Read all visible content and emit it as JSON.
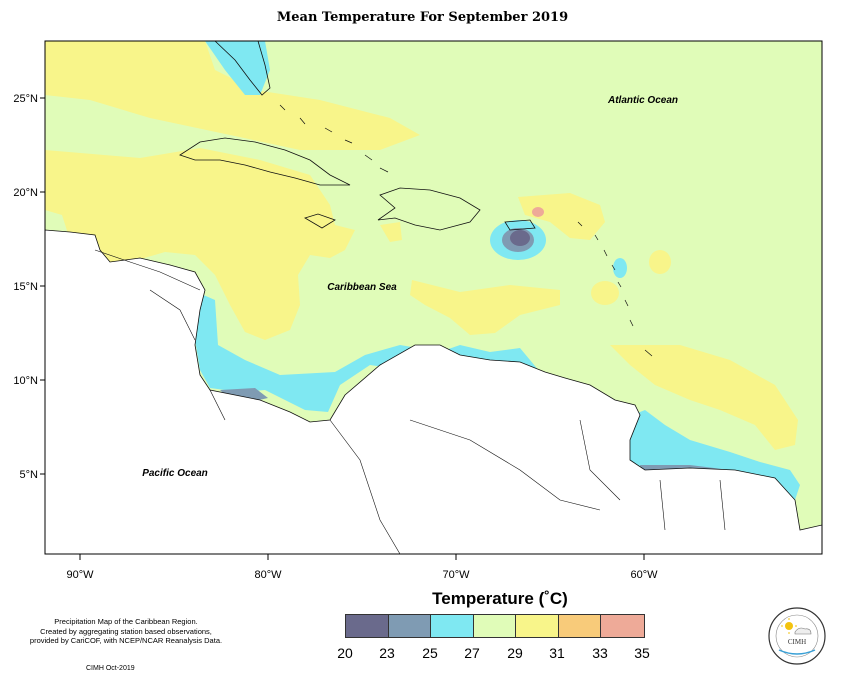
{
  "title": "Mean Temperature For September 2019",
  "lat_ticks": [
    "25°N",
    "20°N",
    "15°N",
    "10°N",
    "5°N"
  ],
  "lon_ticks": [
    "90°W",
    "80°W",
    "70°W",
    "60°W"
  ],
  "labels": {
    "atlantic": "Atlantic Ocean",
    "caribbean": "Caribbean Sea",
    "pacific": "Pacific Ocean"
  },
  "legend": {
    "title": "Temperature (˚C)",
    "ticks": [
      "20",
      "23",
      "25",
      "27",
      "29",
      "31",
      "33",
      "35"
    ],
    "colors": [
      "#6a6a8c",
      "#7f9bb3",
      "#7fe8f2",
      "#e0fcb8",
      "#f8f58a",
      "#f8cb7a",
      "#eeaa98"
    ]
  },
  "credit": {
    "line1": "Precipitation Map of the Caribbean Region.",
    "line2": "Created by aggregating station based observations,",
    "line3": "provided by CariCOF, with NCEP/NCAR Reanalysis Data.",
    "stamp": "CIMH Oct-2019"
  },
  "logo": {
    "text": "CIMH"
  }
}
